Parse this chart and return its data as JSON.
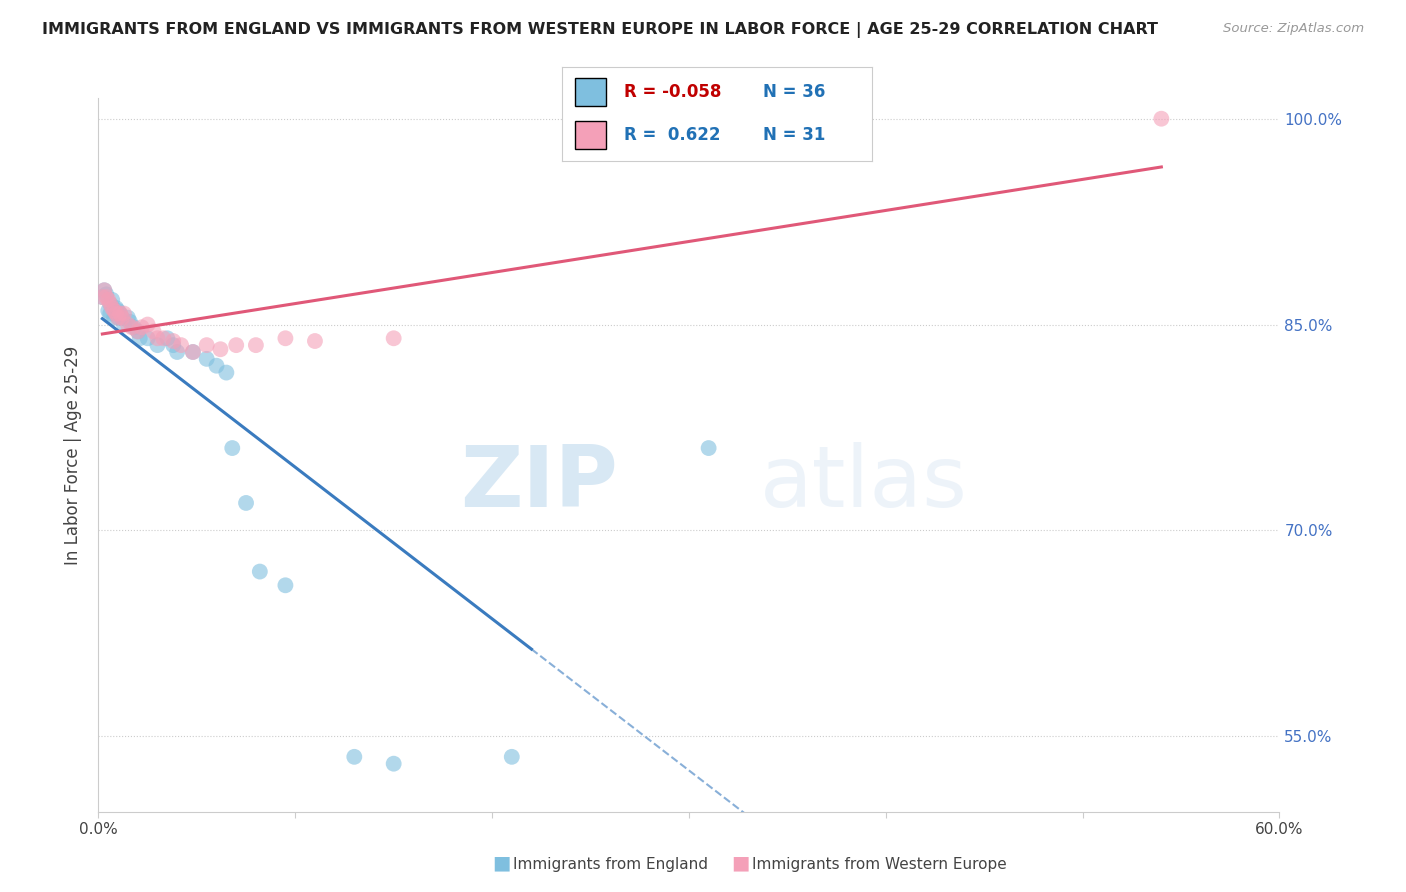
{
  "title": "IMMIGRANTS FROM ENGLAND VS IMMIGRANTS FROM WESTERN EUROPE IN LABOR FORCE | AGE 25-29 CORRELATION CHART",
  "source": "Source: ZipAtlas.com",
  "ylabel": "In Labor Force | Age 25-29",
  "xlim": [
    0.0,
    0.6
  ],
  "ylim": [
    0.495,
    1.015
  ],
  "legend_R1": "-0.058",
  "legend_N1": "36",
  "legend_R2": "0.622",
  "legend_N2": "31",
  "blue_color": "#7fbfdf",
  "pink_color": "#f4a0b8",
  "blue_line_color": "#3a7bbf",
  "pink_line_color": "#e05878",
  "england_x": [
    0.002,
    0.003,
    0.004,
    0.005,
    0.006,
    0.006,
    0.007,
    0.008,
    0.009,
    0.01,
    0.01,
    0.011,
    0.012,
    0.013,
    0.015,
    0.016,
    0.018,
    0.02,
    0.021,
    0.025,
    0.03,
    0.035,
    0.038,
    0.04,
    0.048,
    0.055,
    0.06,
    0.065,
    0.068,
    0.075,
    0.082,
    0.095,
    0.13,
    0.15,
    0.21,
    0.31
  ],
  "england_y": [
    0.87,
    0.875,
    0.872,
    0.86,
    0.858,
    0.865,
    0.868,
    0.855,
    0.862,
    0.86,
    0.855,
    0.858,
    0.855,
    0.85,
    0.855,
    0.852,
    0.848,
    0.845,
    0.84,
    0.84,
    0.835,
    0.84,
    0.835,
    0.83,
    0.83,
    0.825,
    0.82,
    0.815,
    0.76,
    0.72,
    0.67,
    0.66,
    0.535,
    0.53,
    0.535,
    0.76
  ],
  "western_x": [
    0.002,
    0.003,
    0.004,
    0.005,
    0.006,
    0.007,
    0.008,
    0.009,
    0.01,
    0.011,
    0.012,
    0.013,
    0.015,
    0.017,
    0.02,
    0.022,
    0.025,
    0.028,
    0.03,
    0.033,
    0.038,
    0.042,
    0.048,
    0.055,
    0.062,
    0.07,
    0.08,
    0.095,
    0.11,
    0.15,
    0.54
  ],
  "western_y": [
    0.87,
    0.875,
    0.87,
    0.868,
    0.865,
    0.862,
    0.86,
    0.858,
    0.855,
    0.858,
    0.855,
    0.858,
    0.85,
    0.848,
    0.845,
    0.848,
    0.85,
    0.845,
    0.84,
    0.84,
    0.838,
    0.835,
    0.83,
    0.835,
    0.832,
    0.835,
    0.835,
    0.84,
    0.838,
    0.84,
    1.0
  ],
  "watermark_zip": "ZIP",
  "watermark_atlas": "atlas",
  "background_color": "#ffffff",
  "grid_color": "#cccccc",
  "y_right_labels": [
    [
      1.0,
      "100.0%"
    ],
    [
      0.85,
      "85.0%"
    ],
    [
      0.7,
      "70.0%"
    ],
    [
      0.55,
      "55.0%"
    ]
  ],
  "x_labels": [
    [
      0.0,
      "0.0%"
    ],
    [
      0.6,
      "60.0%"
    ]
  ]
}
